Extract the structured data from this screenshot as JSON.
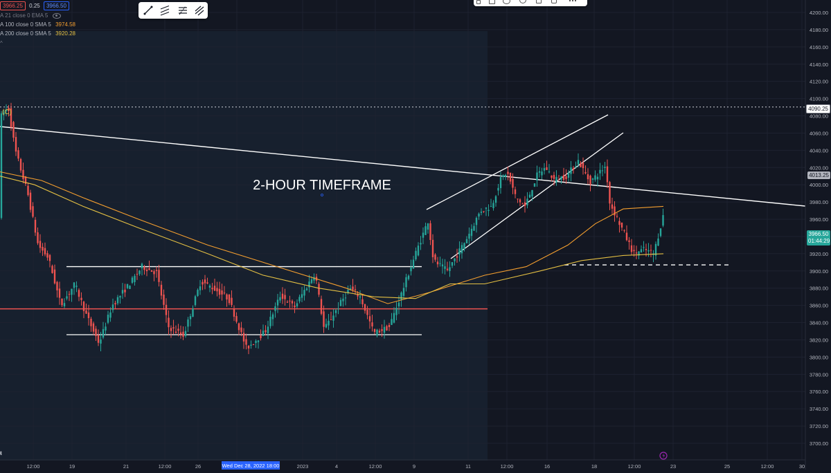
{
  "legend": {
    "price_red": "3966.25",
    "price_change": "0.25",
    "price_blue": "3966.50",
    "rows": [
      {
        "text": "A 21 close 0 EMA 5",
        "value": "",
        "color": "#787b86"
      },
      {
        "text": "A 100 close 0 SMA 5",
        "value": "3974.58",
        "color": "#f59f2f"
      },
      {
        "text": "A 200 close 0 SMA 5",
        "value": "3920.28",
        "color": "#e5c043"
      }
    ],
    "collapse_glyph": "^"
  },
  "drawing_toolbar": {
    "tools": [
      "trend-line-tool",
      "parallel-channel-tool",
      "fib-tool",
      "pitchfork-tool"
    ]
  },
  "top_toolbar": {
    "tools": [
      "brush-tool",
      "lock-tool",
      "visibility-tool",
      "settings-tool",
      "delete-tool",
      "trash-tool"
    ]
  },
  "annotation": {
    "title": "2-HOUR TIMEFRAME",
    "wave_label": "(C)"
  },
  "price_axis": {
    "ticks": [
      "4200.00",
      "4180.00",
      "4160.00",
      "4140.00",
      "4120.00",
      "4100.00",
      "4080.00",
      "4060.00",
      "4040.00",
      "4020.00",
      "4000.00",
      "3980.00",
      "3960.00",
      "3940.00",
      "3920.00",
      "3900.00",
      "3880.00",
      "3860.00",
      "3840.00",
      "3820.00",
      "3800.00",
      "3780.00",
      "3760.00",
      "3740.00",
      "3720.00",
      "3700.00"
    ],
    "labels": {
      "high": "4090.25",
      "last_close": "4013.25",
      "current_price": "3966.50",
      "countdown": "01:44:29"
    }
  },
  "time_axis": {
    "ticks": [
      "12:00",
      "19",
      "21",
      "12:00",
      "26",
      "12:00",
      "2023",
      "4",
      "12:00",
      "9",
      "11",
      "12:00",
      "16",
      "18",
      "12:00",
      "23",
      "25",
      "12:00",
      "30"
    ],
    "cursor_label": "Wed Dec 28, 2022   18:00"
  },
  "chart_data": {
    "type": "candlestick",
    "title": "2-HOUR TIMEFRAME",
    "ylim": [
      3690,
      4210
    ],
    "grid": true,
    "up_color": "#26a69a",
    "down_color": "#ef5350",
    "series": [
      {
        "name": "A 100 close 0 SMA 5",
        "color": "#f59f2f"
      },
      {
        "name": "A 200 close 0 SMA 5",
        "color": "#e5c043"
      }
    ],
    "annotation_levels": {
      "range_high": 3905,
      "range_low": 3826,
      "red_level": 3856,
      "support_dashed": 3907,
      "high_dotted": 4090.25
    }
  },
  "colors": {
    "background": "#131722",
    "highlight_band": "#17202e",
    "accent_blue": "#2962ff",
    "current_price": "#26a69a"
  }
}
